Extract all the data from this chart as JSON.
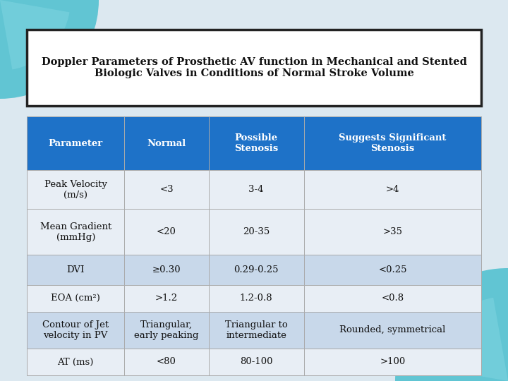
{
  "title": "Doppler Parameters of Prosthetic AV function in Mechanical and Stented\nBiologic Valves in Conditions of Normal Stroke Volume",
  "background_color": "#dce8f0",
  "header_bg_color": "#1e72c8",
  "header_text_color": "#ffffff",
  "row_colors": [
    "#e8eef5",
    "#e8eef5",
    "#c8d8ea",
    "#e8eef5",
    "#c8d8ea",
    "#e8eef5"
  ],
  "col_headers": [
    "Parameter",
    "Normal",
    "Possible\nStenosis",
    "Suggests Significant\nStenosis"
  ],
  "rows": [
    [
      "Peak Velocity\n(m/s)",
      "<3",
      "3-4",
      ">4"
    ],
    [
      "Mean Gradient\n(mmHg)",
      "<20",
      "20-35",
      ">35"
    ],
    [
      "DVI",
      "≥0.30",
      "0.29-0.25",
      "<0.25"
    ],
    [
      "EOA (cm²)",
      ">1.2",
      "1.2-0.8",
      "<0.8"
    ],
    [
      "Contour of Jet\nvelocity in PV",
      "Triangular,\nearly peaking",
      "Triangular to\nintermediate",
      "Rounded, symmetrical"
    ],
    [
      "AT (ms)",
      "<80",
      "80-100",
      ">100"
    ]
  ],
  "title_box_color": "#ffffff",
  "title_box_border": "#222222",
  "title_fontsize": 10.5,
  "header_fontsize": 9.5,
  "cell_fontsize": 9.5
}
